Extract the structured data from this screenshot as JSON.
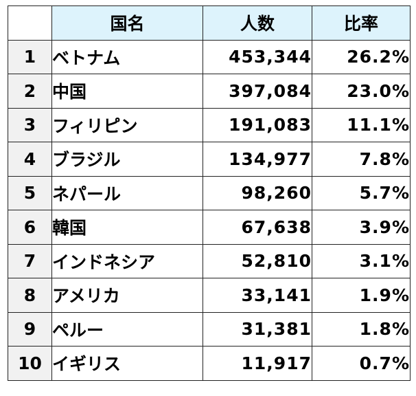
{
  "table": {
    "headers": {
      "rank": "",
      "country": "国名",
      "count": "人数",
      "ratio": "比率"
    },
    "rows": [
      {
        "rank": "1",
        "country": "ベトナム",
        "count": "453,344",
        "ratio": "26.2%"
      },
      {
        "rank": "2",
        "country": "中国",
        "count": "397,084",
        "ratio": "23.0%"
      },
      {
        "rank": "3",
        "country": "フィリピン",
        "count": "191,083",
        "ratio": "11.1%"
      },
      {
        "rank": "4",
        "country": "ブラジル",
        "count": "134,977",
        "ratio": "7.8%"
      },
      {
        "rank": "5",
        "country": "ネパール",
        "count": "98,260",
        "ratio": "5.7%"
      },
      {
        "rank": "6",
        "country": "韓国",
        "count": "67,638",
        "ratio": "3.9%"
      },
      {
        "rank": "7",
        "country": "インドネシア",
        "count": "52,810",
        "ratio": "3.1%"
      },
      {
        "rank": "8",
        "country": "アメリカ",
        "count": "33,141",
        "ratio": "1.9%"
      },
      {
        "rank": "9",
        "country": "ペルー",
        "count": "31,381",
        "ratio": "1.8%"
      },
      {
        "rank": "10",
        "country": "イギリス",
        "count": "11,917",
        "ratio": "0.7%"
      }
    ]
  },
  "colors": {
    "header_background": "#ddf3fc",
    "rank_column_background": "#f1f1f1",
    "border": "#222222"
  }
}
